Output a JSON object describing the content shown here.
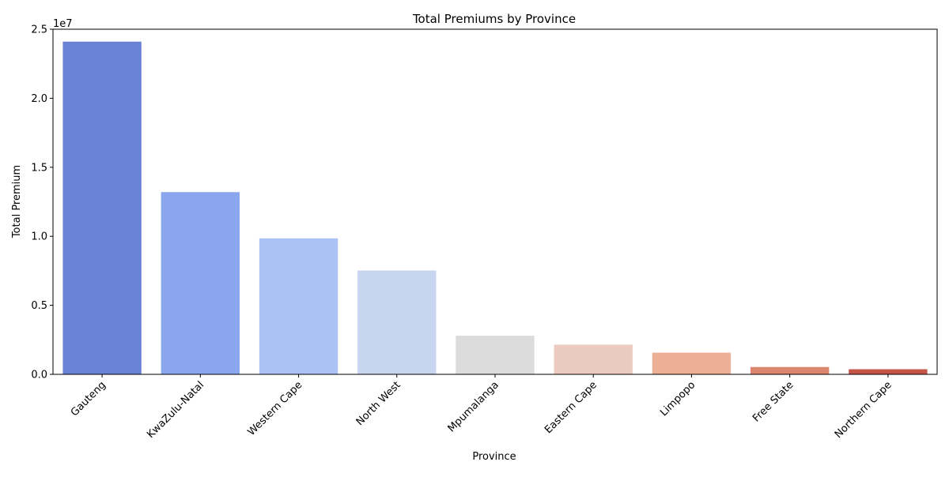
{
  "chart_data": {
    "type": "bar",
    "title": "Total Premiums by Province",
    "xlabel": "Province",
    "ylabel": "Total Premium",
    "offset_label": "1e7",
    "categories": [
      "Gauteng",
      "KwaZulu-Natal",
      "Western Cape",
      "North West",
      "Mpumalanga",
      "Eastern Cape",
      "Limpopo",
      "Free State",
      "Northern Cape"
    ],
    "values": [
      24100000,
      13200000,
      9850000,
      7520000,
      2800000,
      2150000,
      1570000,
      530000,
      370000
    ],
    "colors": [
      "#6a82d6",
      "#8aa6ec",
      "#aac2f5",
      "#c8d5ef",
      "#dcdcdc",
      "#ebcbbd",
      "#ecb096",
      "#dc8670",
      "#c45548"
    ],
    "ylim": [
      0,
      25000000
    ],
    "yticks": [
      0,
      5000000,
      10000000,
      15000000,
      20000000,
      25000000
    ],
    "ytick_labels": [
      "0.0",
      "0.5",
      "1.0",
      "1.5",
      "2.0",
      "2.5"
    ],
    "grid": false,
    "legend": "none"
  }
}
